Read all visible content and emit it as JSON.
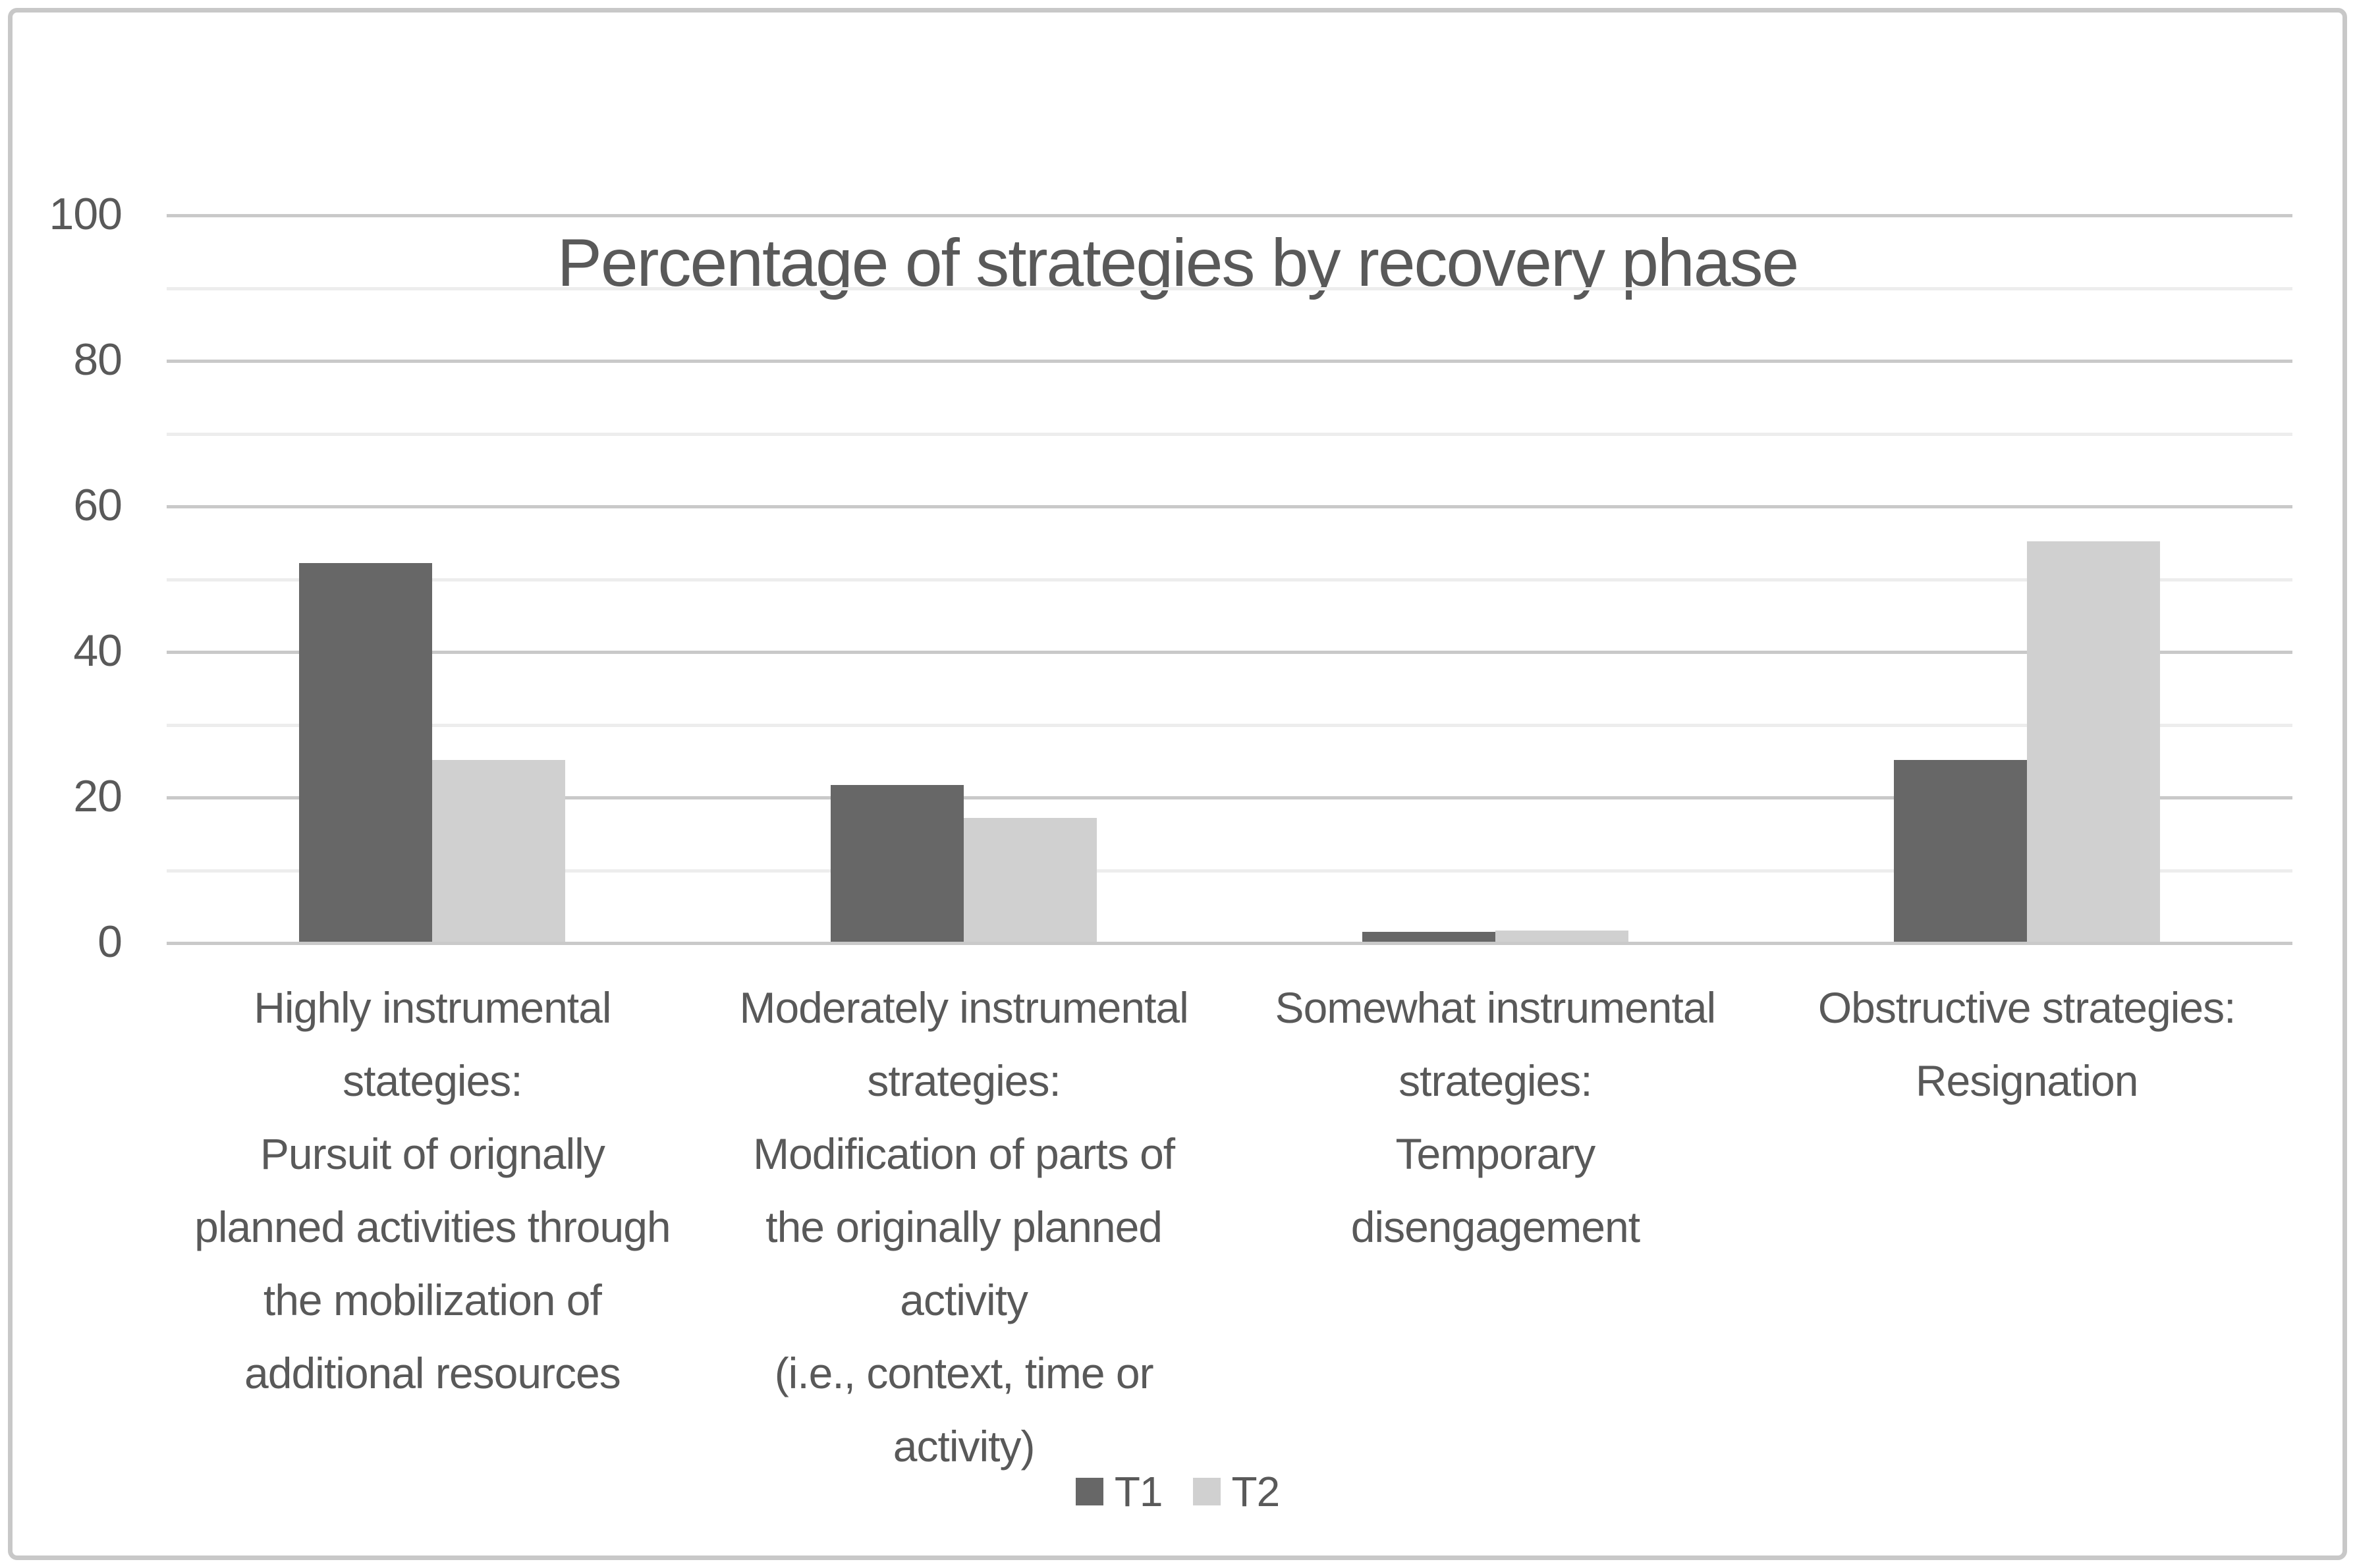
{
  "page": {
    "background": "#ffffff",
    "border_color": "#c8c8c8"
  },
  "colors": {
    "text": "#595959",
    "major_gridline": "#c9c9c9",
    "minor_gridline": "#ededed",
    "axis_line": "#c9c9c9",
    "series_t1": "#676767",
    "series_t2": "#d0d0d0"
  },
  "chart_data": {
    "type": "bar",
    "title": "Percentage of strategies by recovery phase",
    "xlabel": "",
    "ylabel": "",
    "ylim": [
      0,
      100
    ],
    "y_major_ticks": [
      0,
      20,
      40,
      60,
      80,
      100
    ],
    "y_minor_step": 10,
    "grid": true,
    "legend_position": "bottom-center",
    "categories": [
      {
        "lines": [
          "Highly instrumental",
          "stategies:",
          "Pursuit of orignally",
          "planned activities through",
          "the mobilization of",
          "additional resources"
        ]
      },
      {
        "lines": [
          "Moderately instrumental",
          "strategies:",
          "Modification of parts of",
          "the originally planned",
          "activity",
          "(i.e., context, time or",
          "activity)"
        ]
      },
      {
        "lines": [
          "Somewhat instrumental",
          "strategies:",
          "Temporary",
          "disengagement"
        ]
      },
      {
        "lines": [
          "Obstructive strategies:",
          "Resignation"
        ]
      }
    ],
    "series": [
      {
        "name": "T1",
        "color": "#676767",
        "values": [
          52,
          21.5,
          1.4,
          25
        ]
      },
      {
        "name": "T2",
        "color": "#d0d0d0",
        "values": [
          25,
          17,
          1.5,
          55
        ]
      }
    ]
  }
}
